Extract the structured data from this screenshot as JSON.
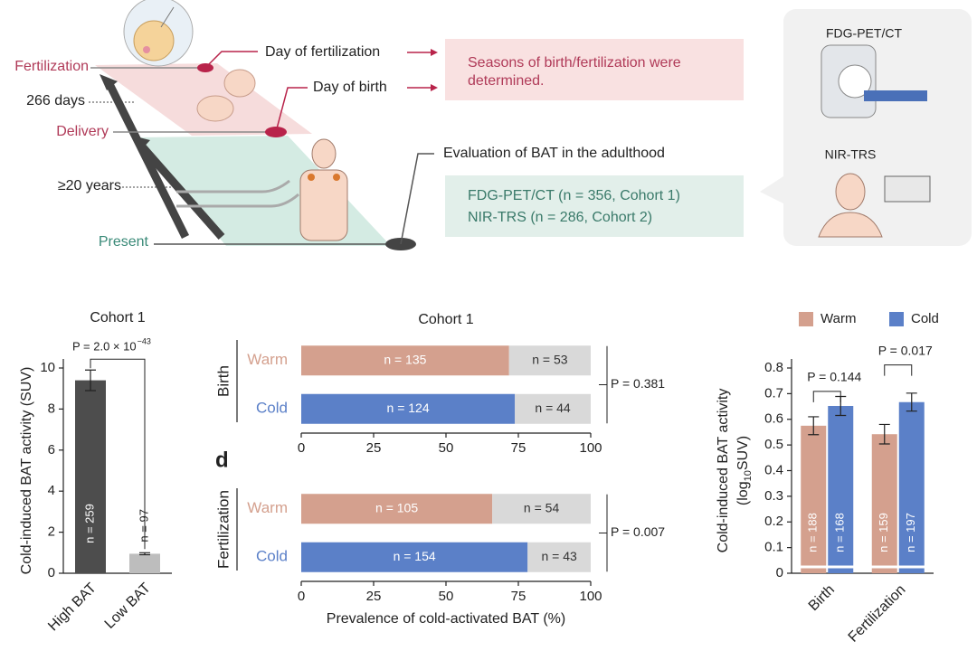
{
  "diagram": {
    "fertilization": "Fertilization",
    "days": "266 days",
    "delivery": "Delivery",
    "years": "≥20 years",
    "present": "Present",
    "day_fert": "Day of fertilization",
    "day_birth": "Day of birth",
    "seasons": [
      "Seasons of birth/fertilization were",
      "determined."
    ],
    "evaluation": "Evaluation of BAT in the adulthood",
    "cohorts": [
      "FDG-PET/CT (n = 356, Cohort 1)",
      "NIR-TRS (n = 286, Cohort 2)"
    ],
    "pet": "FDG-PET/CT",
    "nirs": "NIR-TRS"
  },
  "chart_data": [
    {
      "type": "bar",
      "title": "Cohort 1",
      "ylabel": "Cold-induced BAT activity (SUV)",
      "categories": [
        "High BAT",
        "Low BAT"
      ],
      "values": [
        9.4,
        0.95
      ],
      "errors": [
        0.5,
        0.05
      ],
      "colors": [
        "#4d4d4d",
        "#bdbdbd"
      ],
      "labels": [
        "n = 259",
        "n = 97"
      ],
      "ylim": [
        0,
        10
      ],
      "yticks": [
        0,
        2,
        4,
        6,
        8,
        10
      ],
      "annotation": {
        "text": "P = 2.0 × 10",
        "sup": "−43"
      }
    },
    {
      "type": "barh_stacked",
      "title": "Cohort 1",
      "group": "Birth",
      "categories": [
        "Warm",
        "Cold"
      ],
      "series": [
        {
          "colors": [
            "#d4a08e",
            "#5b80c8"
          ],
          "values": [
            71.8,
            73.8
          ],
          "labels": [
            "n = 135",
            "n = 124"
          ]
        },
        {
          "color": "#d9d9d9",
          "values": [
            28.2,
            26.2
          ],
          "labels": [
            "n = 53",
            "n = 44"
          ]
        }
      ],
      "xlim": [
        0,
        100
      ],
      "xticks": [
        0,
        25,
        50,
        75,
        100
      ],
      "annotation": "P = 0.381"
    },
    {
      "type": "barh_stacked",
      "panel_label": "d",
      "group": "Fertilization",
      "categories": [
        "Warm",
        "Cold"
      ],
      "xlabel": "Prevalence of cold-activated BAT (%)",
      "series": [
        {
          "colors": [
            "#d4a08e",
            "#5b80c8"
          ],
          "values": [
            66.0,
            78.2
          ],
          "labels": [
            "n = 105",
            "n = 154"
          ]
        },
        {
          "color": "#d9d9d9",
          "values": [
            34.0,
            21.8
          ],
          "labels": [
            "n = 54",
            "n = 43"
          ]
        }
      ],
      "xlim": [
        0,
        100
      ],
      "xticks": [
        0,
        25,
        50,
        75,
        100
      ],
      "annotation": "P = 0.007"
    },
    {
      "type": "grouped_bar",
      "ylabel": "Cold-induced BAT activity",
      "ylabel_unit": [
        "(log",
        "10",
        " SUV)"
      ],
      "categories": [
        "Birth",
        "Fertilization"
      ],
      "series": [
        {
          "name": "Warm",
          "color": "#d4a08e",
          "values": [
            0.575,
            0.542
          ],
          "errors": [
            0.035,
            0.038
          ],
          "labels": [
            "n = 188",
            "n = 159"
          ]
        },
        {
          "name": "Cold",
          "color": "#5b80c8",
          "values": [
            0.652,
            0.667
          ],
          "errors": [
            0.037,
            0.035
          ],
          "labels": [
            "n = 168",
            "n = 197"
          ]
        }
      ],
      "ylim": [
        0,
        0.8
      ],
      "yticks": [
        0,
        0.1,
        0.2,
        0.3,
        0.4,
        0.5,
        0.6,
        0.7,
        0.8
      ],
      "annotations": [
        "P = 0.144",
        "P = 0.017"
      ]
    }
  ]
}
